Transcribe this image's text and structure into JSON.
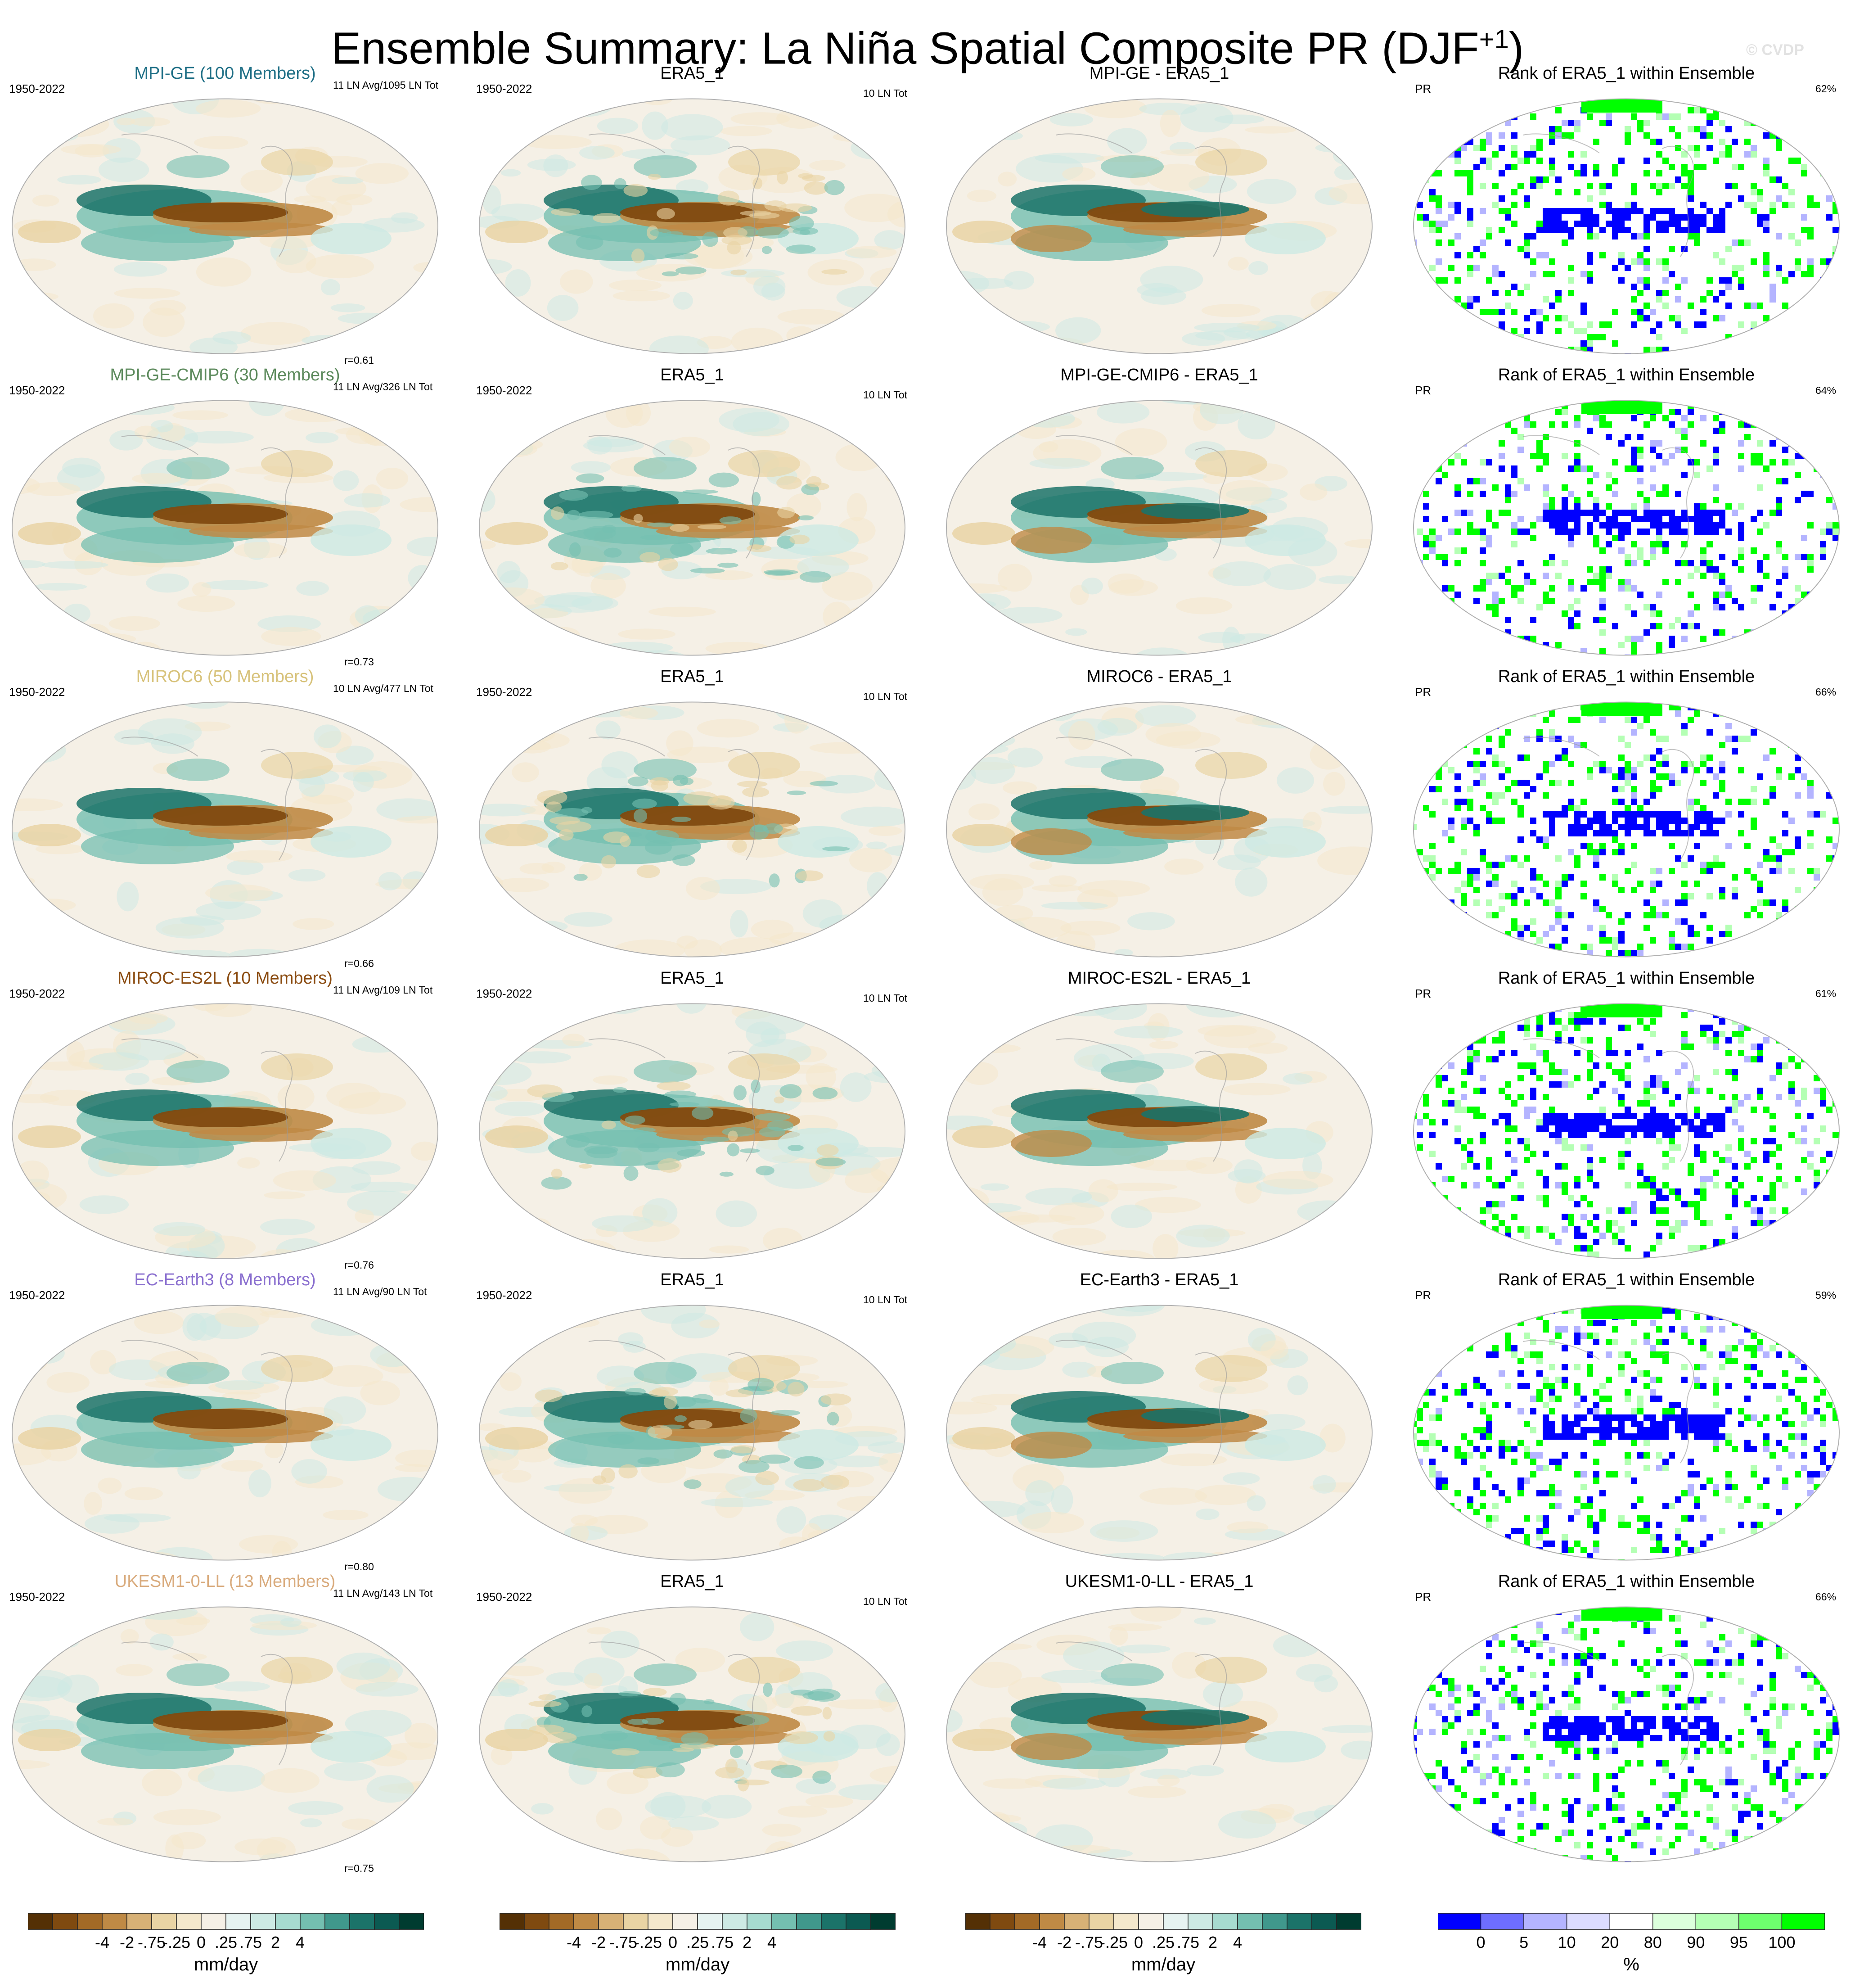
{
  "page": {
    "title_main": "Ensemble Summary: La Niña Spatial Composite PR (DJF",
    "title_sup": "+1",
    "title_close": ")",
    "credit": "© CVDP"
  },
  "colors": {
    "diverging": [
      "#543005",
      "#7f4a10",
      "#a36a26",
      "#bf8a45",
      "#d7b176",
      "#e9d4a4",
      "#f4e8cc",
      "#f5f0e6",
      "#e6f3f1",
      "#cdeae4",
      "#a7dbd0",
      "#74bfb0",
      "#40988c",
      "#1b7369",
      "#0b5a52",
      "#003c30"
    ],
    "rank": [
      "#0000ff",
      "#6e6eff",
      "#b4b4ff",
      "#dcdcff",
      "#ffffff",
      "#dcffdc",
      "#b4ffb4",
      "#6eff6e",
      "#00ff00"
    ],
    "model_title_colors": [
      "#1f6f86",
      "#5c8a5c",
      "#d7c27a",
      "#8a4b10",
      "#8a6fcf",
      "#d9ab7d"
    ]
  },
  "rows": [
    {
      "model_title": "MPI-GE (100 Members)",
      "years": "1950-2022",
      "model_count": "11 LN Avg/1095 LN Tot",
      "corr": "r=0.61",
      "obs_title": "ERA5_1",
      "obs_years": "1950-2022",
      "obs_count": "10 LN Tot",
      "diff_title": "MPI-GE - ERA5_1",
      "rank_title": "Rank of ERA5_1 within Ensemble",
      "rank_var": "PR",
      "rank_pct": "62%"
    },
    {
      "model_title": "MPI-GE-CMIP6 (30 Members)",
      "years": "1950-2022",
      "model_count": "11 LN Avg/326 LN Tot",
      "corr": "r=0.73",
      "obs_title": "ERA5_1",
      "obs_years": "1950-2022",
      "obs_count": "10 LN Tot",
      "diff_title": "MPI-GE-CMIP6 - ERA5_1",
      "rank_title": "Rank of ERA5_1 within Ensemble",
      "rank_var": "PR",
      "rank_pct": "64%"
    },
    {
      "model_title": "MIROC6 (50 Members)",
      "years": "1950-2022",
      "model_count": "10 LN Avg/477 LN Tot",
      "corr": "r=0.66",
      "obs_title": "ERA5_1",
      "obs_years": "1950-2022",
      "obs_count": "10 LN Tot",
      "diff_title": "MIROC6 - ERA5_1",
      "rank_title": "Rank of ERA5_1 within Ensemble",
      "rank_var": "PR",
      "rank_pct": "66%"
    },
    {
      "model_title": "MIROC-ES2L (10 Members)",
      "years": "1950-2022",
      "model_count": "11 LN Avg/109 LN Tot",
      "corr": "r=0.76",
      "obs_title": "ERA5_1",
      "obs_years": "1950-2022",
      "obs_count": "10 LN Tot",
      "diff_title": "MIROC-ES2L - ERA5_1",
      "rank_title": "Rank of ERA5_1 within Ensemble",
      "rank_var": "PR",
      "rank_pct": "61%"
    },
    {
      "model_title": "EC-Earth3 (8 Members)",
      "years": "1950-2022",
      "model_count": "11 LN Avg/90 LN Tot",
      "corr": "r=0.80",
      "obs_title": "ERA5_1",
      "obs_years": "1950-2022",
      "obs_count": "10 LN Tot",
      "diff_title": "EC-Earth3 - ERA5_1",
      "rank_title": "Rank of ERA5_1 within Ensemble",
      "rank_var": "PR",
      "rank_pct": "59%"
    },
    {
      "model_title": "UKESM1-0-LL (13 Members)",
      "years": "1950-2022",
      "model_count": "11 LN Avg/143 LN Tot",
      "corr": "r=0.75",
      "obs_title": "ERA5_1",
      "obs_years": "1950-2022",
      "obs_count": "10 LN Tot",
      "diff_title": "UKESM1-0-LL - ERA5_1",
      "rank_title": "Rank of ERA5_1 within Ensemble",
      "rank_var": "PR",
      "rank_pct": "66%"
    }
  ],
  "colorbars": {
    "diverging_labels": [
      "-4",
      "-2",
      "-.75",
      "-.25",
      "0",
      ".25",
      ".75",
      "2",
      "4"
    ],
    "diverging_unit": "mm/day",
    "rank_labels": [
      "0",
      "5",
      "10",
      "20",
      "80",
      "90",
      "95",
      "100"
    ],
    "rank_unit": "%"
  },
  "chart_data": {
    "type": "heatmap",
    "projection": "global map panels",
    "title": "Ensemble Summary: La Niña Spatial Composite PR (DJF+1)",
    "columns": [
      "Ensemble mean composite",
      "Observed composite (ERA5_1)",
      "Ensemble mean minus observed",
      "Rank of ERA5_1 within Ensemble"
    ],
    "colorbar_diverging": {
      "levels": [
        -4,
        -2,
        -0.75,
        -0.25,
        0,
        0.25,
        0.75,
        2,
        4
      ],
      "unit": "mm/day"
    },
    "colorbar_rank": {
      "levels": [
        0,
        5,
        10,
        20,
        80,
        90,
        95,
        100
      ],
      "unit": "%"
    },
    "pattern_correlations": [
      {
        "model": "MPI-GE",
        "r": 0.61
      },
      {
        "model": "MPI-GE-CMIP6",
        "r": 0.73
      },
      {
        "model": "MIROC6",
        "r": 0.66
      },
      {
        "model": "MIROC-ES2L",
        "r": 0.76
      },
      {
        "model": "EC-Earth3",
        "r": 0.8
      },
      {
        "model": "UKESM1-0-LL",
        "r": 0.75
      }
    ],
    "rank_percent": [
      {
        "model": "MPI-GE",
        "value": 62
      },
      {
        "model": "MPI-GE-CMIP6",
        "value": 64
      },
      {
        "model": "MIROC6",
        "value": 66
      },
      {
        "model": "MIROC-ES2L",
        "value": 61
      },
      {
        "model": "EC-Earth3",
        "value": 59
      },
      {
        "model": "UKESM1-0-LL",
        "value": 66
      }
    ]
  }
}
